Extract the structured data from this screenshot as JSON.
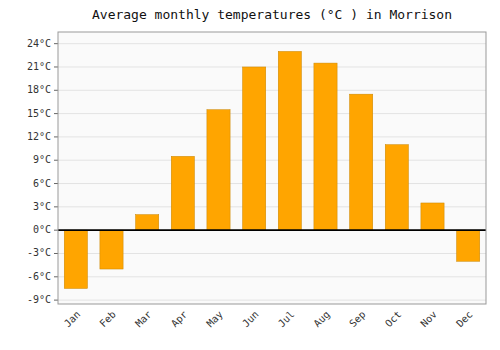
{
  "chart_data": {
    "type": "bar",
    "title": "Average monthly temperatures (°C ) in Morrison",
    "categories": [
      "Jan",
      "Feb",
      "Mar",
      "Apr",
      "May",
      "Jun",
      "Jul",
      "Aug",
      "Sep",
      "Oct",
      "Nov",
      "Dec"
    ],
    "values": [
      -7.5,
      -5.0,
      2.0,
      9.5,
      15.5,
      21.0,
      23.0,
      21.5,
      17.5,
      11.0,
      3.5,
      -4.0
    ],
    "color": "#FFA500",
    "ylim": [
      -9.5,
      25.5
    ],
    "yticks": [
      {
        "value": -9,
        "label": "-9°C"
      },
      {
        "value": -6,
        "label": "-6°C"
      },
      {
        "value": -3,
        "label": "-3°C"
      },
      {
        "value": 0,
        "label": "0°C"
      },
      {
        "value": 3,
        "label": "3°C"
      },
      {
        "value": 6,
        "label": "6°C"
      },
      {
        "value": 9,
        "label": "9°C"
      },
      {
        "value": 12,
        "label": "12°C"
      },
      {
        "value": 15,
        "label": "15°C"
      },
      {
        "value": 18,
        "label": "18°C"
      },
      {
        "value": 21,
        "label": "21°C"
      },
      {
        "value": 24,
        "label": "24°C"
      }
    ],
    "grid": true
  }
}
